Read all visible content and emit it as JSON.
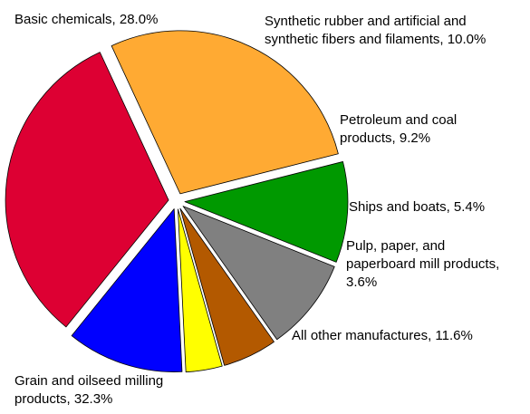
{
  "chart_data": {
    "type": "pie",
    "title": "",
    "legend": "none",
    "slices": [
      {
        "label_lines": [
          "Synthetic rubber and artificial and",
          "synthetic fibers and filaments, 10.0%"
        ],
        "value": 10.0,
        "color": "#009900"
      },
      {
        "label_lines": [
          "Petroleum and coal",
          "products, 9.2%"
        ],
        "value": 9.2,
        "color": "#808080"
      },
      {
        "label_lines": [
          "Ships and boats, 5.4%"
        ],
        "value": 5.4,
        "color": "#B35900"
      },
      {
        "label_lines": [
          "Pulp, paper, and",
          "paperboard mill products,",
          "3.6%"
        ],
        "value": 3.6,
        "color": "#FFFF00"
      },
      {
        "label_lines": [
          "All other manufactures, 11.6%"
        ],
        "value": 11.6,
        "color": "#0000FF"
      },
      {
        "label_lines": [
          "Grain and oilseed milling",
          "products, 32.3%"
        ],
        "value": 32.3,
        "color": "#DD0033"
      },
      {
        "label_lines": [
          "Basic chemicals, 28.0%"
        ],
        "value": 28.0,
        "color": "#FFAA33"
      }
    ]
  }
}
